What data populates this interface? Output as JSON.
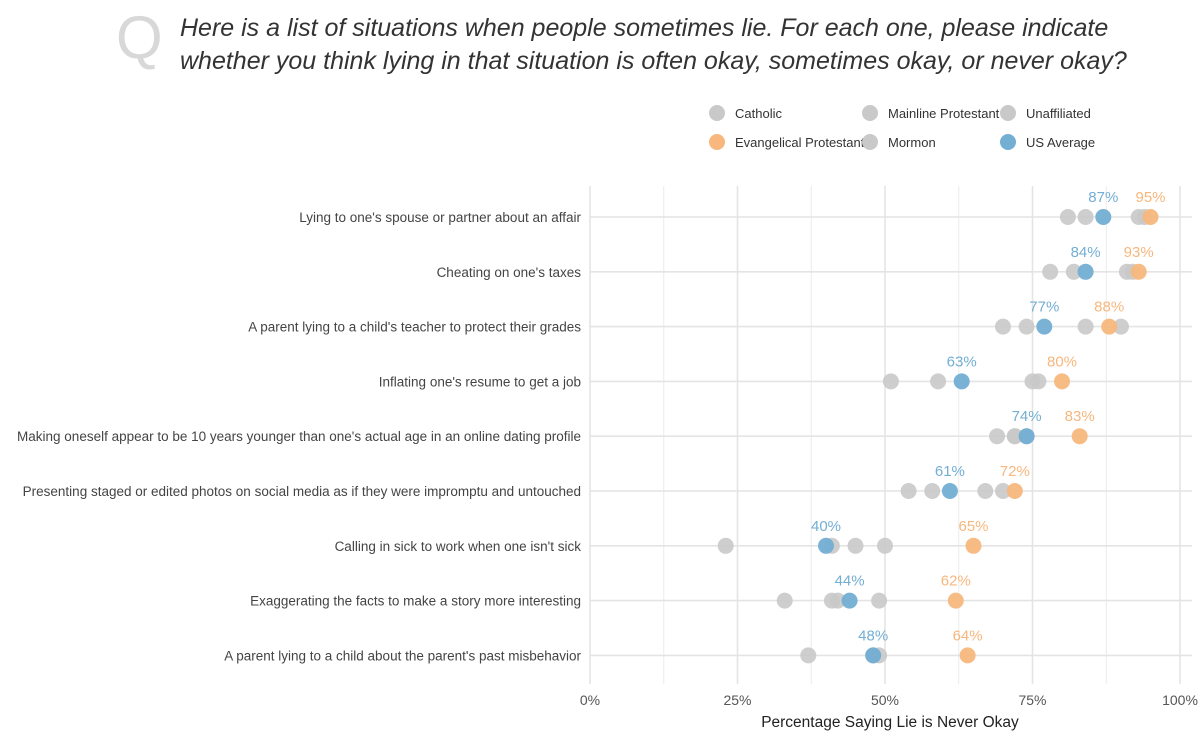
{
  "question_mark": "Q",
  "title": "Here is a list of situations when people sometimes lie. For each one, please indicate whether you think lying in that situation is often okay, sometimes okay, or never okay?",
  "chart_data": {
    "type": "scatter",
    "title": "Here is a list of situations when people sometimes lie. For each one, please indicate whether you think lying in that situation is often okay, sometimes okay, or never okay?",
    "xlabel": "Percentage Saying Lie is Never Okay",
    "ylabel": "",
    "xlim": [
      0,
      100
    ],
    "x_ticks": [
      {
        "value": 0,
        "label": "0%"
      },
      {
        "value": 25,
        "label": "25%"
      },
      {
        "value": 50,
        "label": "50%"
      },
      {
        "value": 75,
        "label": "75%"
      },
      {
        "value": 100,
        "label": "100%"
      }
    ],
    "grid": true,
    "legend_position": "top-right",
    "categories": [
      "Lying to one's spouse or partner about an affair",
      "Cheating on one's taxes",
      "A parent lying to a child's teacher to protect their grades",
      "Inflating one's resume to get a job",
      "Making oneself appear to be 10 years younger than one's actual age in an online dating profile",
      "Presenting staged or edited photos on social media as if they were impromptu and untouched",
      "Calling in sick to work when one isn't sick",
      "Exaggerating the facts to make a story more interesting",
      "A parent lying to a child about the parent's past misbehavior"
    ],
    "series": [
      {
        "name": "Catholic",
        "color": "#c9c9c9",
        "highlight": false,
        "values": [
          84,
          82,
          74,
          75,
          72,
          67,
          41,
          42,
          48
        ]
      },
      {
        "name": "Mainline Protestant",
        "color": "#c9c9c9",
        "highlight": false,
        "values": [
          93,
          91,
          84,
          76,
          72,
          70,
          45,
          41,
          49
        ]
      },
      {
        "name": "Unaffiliated",
        "color": "#c9c9c9",
        "highlight": false,
        "values": [
          81,
          78,
          70,
          59,
          69,
          58,
          23,
          33,
          37
        ]
      },
      {
        "name": "Mormon",
        "color": "#c9c9c9",
        "highlight": false,
        "values": [
          94,
          92,
          90,
          51,
          74,
          54,
          50,
          49,
          48
        ]
      },
      {
        "name": "Evangelical Protestant",
        "color": "#f7b77d",
        "highlight": true,
        "values": [
          95,
          93,
          88,
          80,
          83,
          72,
          65,
          62,
          64
        ]
      },
      {
        "name": "US Average",
        "color": "#73aed3",
        "highlight": true,
        "values": [
          87,
          84,
          77,
          63,
          74,
          61,
          40,
          44,
          48
        ]
      }
    ],
    "data_labels": {
      "US Average": [
        "87%",
        "84%",
        "77%",
        "63%",
        "74%",
        "61%",
        "40%",
        "44%",
        "48%"
      ],
      "Evangelical Protestant": [
        "95%",
        "93%",
        "88%",
        "80%",
        "83%",
        "72%",
        "65%",
        "62%",
        "64%"
      ]
    },
    "legend": [
      {
        "name": "Catholic",
        "color": "#c9c9c9"
      },
      {
        "name": "Mainline Protestant",
        "color": "#c9c9c9"
      },
      {
        "name": "Unaffiliated",
        "color": "#c9c9c9"
      },
      {
        "name": "Evangelical Protestant",
        "color": "#f7b77d"
      },
      {
        "name": "Mormon",
        "color": "#c9c9c9"
      },
      {
        "name": "US Average",
        "color": "#73aed3"
      }
    ]
  }
}
